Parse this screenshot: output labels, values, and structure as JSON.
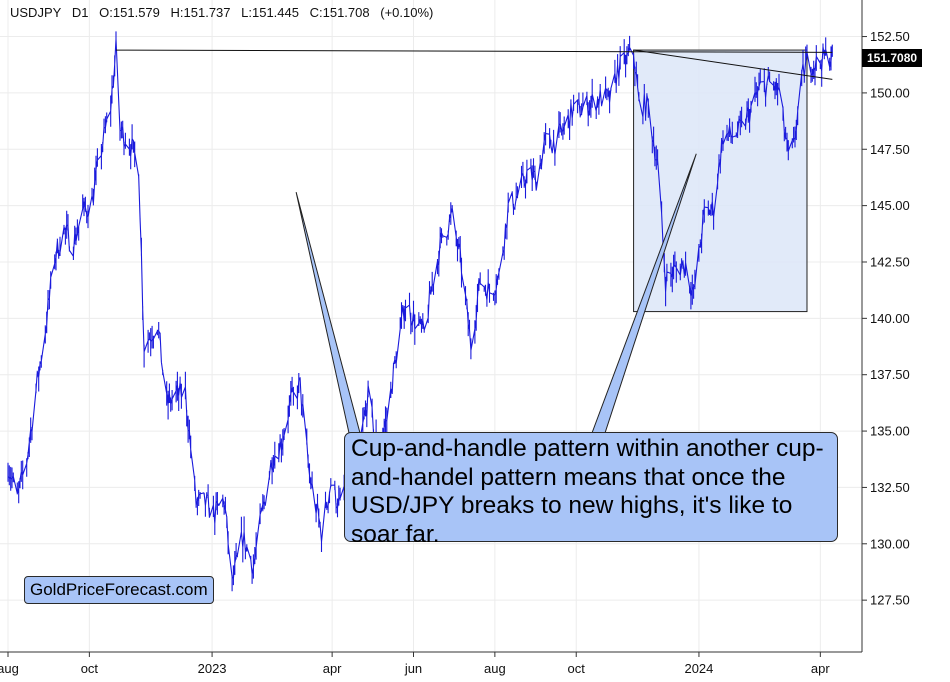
{
  "header": {
    "symbol": "USDJPY",
    "timeframe": "D1",
    "open": "O:151.579",
    "high": "H:151.737",
    "low": "L:151.445",
    "close": "C:151.708",
    "change": "(+0.10%)"
  },
  "annotation": {
    "text": "Cup-and-handle pattern within another cup-and-handel pattern means that once the USD/JPY breaks to new highs, it's like to soar far."
  },
  "watermark_badge": "GoldPriceForecast.com",
  "last_price_label": "151.7080",
  "colors": {
    "price_line": "#1a1adc",
    "callout_fill": "#a8c4f7",
    "highlight_box": "#dce6f8",
    "grid": "#ececec"
  },
  "chart_data": {
    "type": "line",
    "title": "",
    "xlabel": "",
    "ylabel": "",
    "y_axis_side": "right",
    "ylim": [
      125.2,
      153.5
    ],
    "y_ticks": [
      127.5,
      130.0,
      132.5,
      135.0,
      137.5,
      140.0,
      142.5,
      145.0,
      147.5,
      150.0,
      152.5
    ],
    "y_tick_labels": [
      "127.50",
      "130.00",
      "132.50",
      "135.00",
      "137.50",
      "140.00",
      "142.50",
      "145.00",
      "147.50",
      "150.00",
      "152.50"
    ],
    "x_range": [
      "2022-08-01",
      "2024-04-12"
    ],
    "x_ticks": [
      {
        "date": "2022-08-01",
        "label": "aug"
      },
      {
        "date": "2022-10-01",
        "label": "oct"
      },
      {
        "date": "2023-01-01",
        "label": "2023"
      },
      {
        "date": "2023-04-01",
        "label": "apr"
      },
      {
        "date": "2023-06-01",
        "label": "jun"
      },
      {
        "date": "2023-08-01",
        "label": "aug"
      },
      {
        "date": "2023-10-01",
        "label": "oct"
      },
      {
        "date": "2024-01-01",
        "label": "2024"
      },
      {
        "date": "2024-04-01",
        "label": "apr"
      }
    ],
    "grid": true,
    "series": [
      {
        "color": "#1a1adc",
        "points": [
          [
            "2022-08-01",
            133.5
          ],
          [
            "2022-08-08",
            132.0
          ],
          [
            "2022-08-15",
            133.7
          ],
          [
            "2022-08-22",
            136.8
          ],
          [
            "2022-08-29",
            139.5
          ],
          [
            "2022-09-05",
            142.7
          ],
          [
            "2022-09-12",
            143.9
          ],
          [
            "2022-09-19",
            143.3
          ],
          [
            "2022-09-26",
            144.7
          ],
          [
            "2022-10-03",
            145.2
          ],
          [
            "2022-10-10",
            147.5
          ],
          [
            "2022-10-17",
            149.4
          ],
          [
            "2022-10-21",
            151.9
          ],
          [
            "2022-10-24",
            148.4
          ],
          [
            "2022-10-31",
            147.8
          ],
          [
            "2022-11-07",
            146.8
          ],
          [
            "2022-11-11",
            138.8
          ],
          [
            "2022-11-21",
            139.8
          ],
          [
            "2022-11-28",
            136.2
          ],
          [
            "2022-12-05",
            136.6
          ],
          [
            "2022-12-12",
            136.7
          ],
          [
            "2022-12-20",
            131.8
          ],
          [
            "2022-12-27",
            131.8
          ],
          [
            "2023-01-03",
            131.3
          ],
          [
            "2023-01-10",
            132.0
          ],
          [
            "2023-01-16",
            128.2
          ],
          [
            "2023-01-24",
            130.3
          ],
          [
            "2023-02-01",
            129.0
          ],
          [
            "2023-02-08",
            131.5
          ],
          [
            "2023-02-15",
            133.8
          ],
          [
            "2023-02-22",
            134.5
          ],
          [
            "2023-03-01",
            136.3
          ],
          [
            "2023-03-08",
            137.0
          ],
          [
            "2023-03-15",
            133.0
          ],
          [
            "2023-03-24",
            130.5
          ],
          [
            "2023-03-31",
            132.7
          ],
          [
            "2023-04-07",
            131.6
          ],
          [
            "2023-04-14",
            133.5
          ],
          [
            "2023-04-21",
            134.1
          ],
          [
            "2023-04-28",
            136.5
          ],
          [
            "2023-05-05",
            134.3
          ],
          [
            "2023-05-12",
            135.5
          ],
          [
            "2023-05-19",
            138.4
          ],
          [
            "2023-05-26",
            140.7
          ],
          [
            "2023-06-02",
            139.9
          ],
          [
            "2023-06-09",
            139.3
          ],
          [
            "2023-06-16",
            141.8
          ],
          [
            "2023-06-23",
            143.7
          ],
          [
            "2023-06-30",
            144.5
          ],
          [
            "2023-07-07",
            142.3
          ],
          [
            "2023-07-14",
            138.8
          ],
          [
            "2023-07-21",
            141.7
          ],
          [
            "2023-07-28",
            141.2
          ],
          [
            "2023-08-04",
            141.8
          ],
          [
            "2023-08-11",
            144.9
          ],
          [
            "2023-08-18",
            145.4
          ],
          [
            "2023-08-25",
            146.4
          ],
          [
            "2023-09-01",
            146.2
          ],
          [
            "2023-09-08",
            147.8
          ],
          [
            "2023-09-15",
            147.8
          ],
          [
            "2023-09-22",
            148.4
          ],
          [
            "2023-09-29",
            149.3
          ],
          [
            "2023-10-06",
            149.3
          ],
          [
            "2023-10-13",
            149.6
          ],
          [
            "2023-10-20",
            149.8
          ],
          [
            "2023-10-27",
            149.7
          ],
          [
            "2023-11-01",
            151.0
          ],
          [
            "2023-11-13",
            151.8
          ],
          [
            "2023-11-17",
            149.5
          ],
          [
            "2023-11-24",
            149.4
          ],
          [
            "2023-12-01",
            146.8
          ],
          [
            "2023-12-07",
            141.7
          ],
          [
            "2023-12-15",
            142.2
          ],
          [
            "2023-12-22",
            142.4
          ],
          [
            "2023-12-28",
            141.0
          ],
          [
            "2024-01-05",
            144.6
          ],
          [
            "2024-01-12",
            144.9
          ],
          [
            "2024-01-19",
            148.1
          ],
          [
            "2024-01-26",
            148.1
          ],
          [
            "2024-02-02",
            148.4
          ],
          [
            "2024-02-09",
            149.3
          ],
          [
            "2024-02-16",
            150.2
          ],
          [
            "2024-02-23",
            150.4
          ],
          [
            "2024-03-01",
            150.1
          ],
          [
            "2024-03-08",
            147.1
          ],
          [
            "2024-03-12",
            147.6
          ],
          [
            "2024-03-15",
            149.1
          ],
          [
            "2024-03-19",
            150.8
          ],
          [
            "2024-03-22",
            151.4
          ],
          [
            "2024-03-29",
            151.3
          ],
          [
            "2024-04-05",
            151.6
          ],
          [
            "2024-04-10",
            151.7
          ]
        ]
      }
    ],
    "overlays": {
      "resistance_line": {
        "from": [
          "2022-10-21",
          151.9
        ],
        "to": [
          "2024-04-10",
          151.8
        ]
      },
      "handle_trendline": {
        "from": [
          "2023-11-13",
          151.9
        ],
        "to": [
          "2024-04-10",
          150.6
        ]
      },
      "highlight_box": {
        "x0": "2023-11-13",
        "x1": "2024-03-22",
        "y0": 140.3,
        "y1": 151.9
      },
      "pointer_1": {
        "from_callout": true,
        "to": [
          "2023-03-05",
          145.6
        ]
      },
      "pointer_2": {
        "from_callout": true,
        "to": [
          "2023-12-30",
          147.3
        ]
      }
    }
  }
}
